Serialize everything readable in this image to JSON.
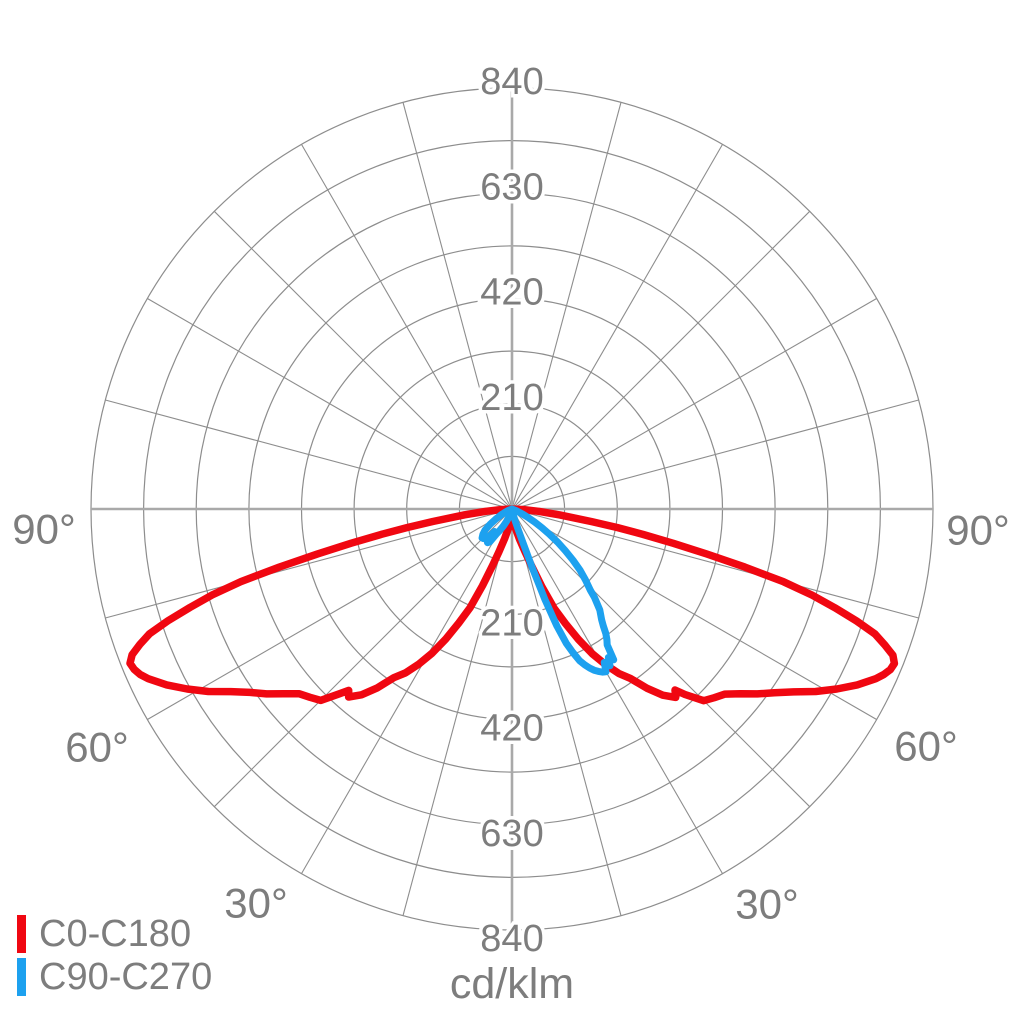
{
  "chart_data": {
    "type": "line",
    "subtype": "polar-photometric-distribution",
    "units_label": "cd/klm",
    "radial_axis": {
      "min": 0,
      "max": 840,
      "circle_step": 105,
      "labeled_ticks": [
        210,
        420,
        630,
        840
      ]
    },
    "angle_grid_step_deg": 15,
    "angle_tick_labels": [
      {
        "text": "90°",
        "deg": 90,
        "side": "left"
      },
      {
        "text": "60°",
        "deg": 60,
        "side": "left"
      },
      {
        "text": "30°",
        "deg": 30,
        "side": "left"
      },
      {
        "text": "30°",
        "deg": 30,
        "side": "right"
      },
      {
        "text": "60°",
        "deg": 60,
        "side": "right"
      },
      {
        "text": "90°",
        "deg": 90,
        "side": "right"
      }
    ],
    "colors": {
      "grid": "#8d8d8d",
      "axis": "#a9a9a9",
      "text": "#7d7d7d",
      "background": "#ffffff",
      "c0": "#f00711",
      "c90": "#1da1ef"
    },
    "legend": {
      "position": "bottom-left",
      "items": [
        {
          "label": "C0-C180",
          "color": "#f00711"
        },
        {
          "label": "C90-C270",
          "color": "#1da1ef"
        }
      ]
    },
    "series": [
      {
        "name": "C0-C180",
        "color": "#f00711",
        "points": [
          [
            -90,
            0
          ],
          [
            -87,
            22
          ],
          [
            -85,
            52
          ],
          [
            -83,
            95
          ],
          [
            -81,
            160
          ],
          [
            -80,
            212
          ],
          [
            -79,
            265
          ],
          [
            -78,
            328
          ],
          [
            -77,
            398
          ],
          [
            -76,
            478
          ],
          [
            -75,
            560
          ],
          [
            -74,
            622
          ],
          [
            -73,
            672
          ],
          [
            -72,
            722
          ],
          [
            -71,
            765
          ],
          [
            -70,
            790
          ],
          [
            -69,
            812
          ],
          [
            -68,
            822
          ],
          [
            -67,
            819
          ],
          [
            -66,
            812
          ],
          [
            -65,
            801
          ],
          [
            -63,
            773
          ],
          [
            -61,
            741
          ],
          [
            -59,
            707
          ],
          [
            -57,
            669
          ],
          [
            -55,
            638
          ],
          [
            -53,
            613
          ],
          [
            -51,
            586
          ],
          [
            -49,
            562
          ],
          [
            -47,
            551
          ],
          [
            -45,
            540
          ],
          [
            -43,
            504
          ],
          [
            -42,
            487
          ],
          [
            -41,
            497
          ],
          [
            -39,
            477
          ],
          [
            -37,
            447
          ],
          [
            -35,
            411
          ],
          [
            -33,
            390
          ],
          [
            -31,
            361
          ],
          [
            -29,
            329
          ],
          [
            -27,
            291
          ],
          [
            -25,
            251
          ],
          [
            -23,
            214
          ],
          [
            -21,
            164
          ],
          [
            -19,
            119
          ],
          [
            -17,
            89
          ],
          [
            -14,
            61
          ],
          [
            -10,
            37
          ],
          [
            -5,
            17
          ],
          [
            0,
            5
          ],
          [
            5,
            18
          ],
          [
            10,
            38
          ],
          [
            14,
            62
          ],
          [
            17,
            90
          ],
          [
            19,
            120
          ],
          [
            21,
            165
          ],
          [
            23,
            215
          ],
          [
            25,
            252
          ],
          [
            27,
            292
          ],
          [
            29,
            330
          ],
          [
            31,
            362
          ],
          [
            33,
            391
          ],
          [
            35,
            413
          ],
          [
            37,
            448
          ],
          [
            39,
            478
          ],
          [
            41,
            498
          ],
          [
            42,
            486
          ],
          [
            43,
            506
          ],
          [
            45,
            541
          ],
          [
            47,
            552
          ],
          [
            49,
            563
          ],
          [
            51,
            586
          ],
          [
            53,
            613
          ],
          [
            55,
            639
          ],
          [
            57,
            670
          ],
          [
            59,
            707
          ],
          [
            61,
            741
          ],
          [
            63,
            773
          ],
          [
            65,
            801
          ],
          [
            66,
            812
          ],
          [
            67,
            820
          ],
          [
            68,
            823
          ],
          [
            69,
            814
          ],
          [
            70,
            791
          ],
          [
            71,
            766
          ],
          [
            72,
            723
          ],
          [
            73,
            673
          ],
          [
            74,
            623
          ],
          [
            75,
            561
          ],
          [
            76,
            479
          ],
          [
            77,
            399
          ],
          [
            78,
            329
          ],
          [
            79,
            266
          ],
          [
            80,
            213
          ],
          [
            81,
            161
          ],
          [
            83,
            96
          ],
          [
            85,
            53
          ],
          [
            87,
            23
          ],
          [
            90,
            0
          ]
        ]
      },
      {
        "name": "C90-C270",
        "color": "#1da1ef",
        "points": [
          [
            -90,
            0
          ],
          [
            -75,
            0
          ],
          [
            -70,
            6
          ],
          [
            -66,
            13
          ],
          [
            -62,
            24
          ],
          [
            -58,
            39
          ],
          [
            -55,
            53
          ],
          [
            -52,
            68
          ],
          [
            -49,
            77
          ],
          [
            -46,
            83
          ],
          [
            -44,
            82
          ],
          [
            -42,
            78
          ],
          [
            -40,
            74
          ],
          [
            -38,
            57
          ],
          [
            -36,
            83
          ],
          [
            -34,
            79
          ],
          [
            -32,
            59
          ],
          [
            -30,
            51
          ],
          [
            -27,
            38
          ],
          [
            -24,
            27
          ],
          [
            -21,
            17
          ],
          [
            -17,
            9
          ],
          [
            -12,
            4
          ],
          [
            -6,
            1
          ],
          [
            0,
            0
          ],
          [
            6,
            2
          ],
          [
            10,
            8
          ],
          [
            13,
            15
          ],
          [
            15,
            26
          ],
          [
            17,
            46
          ],
          [
            18,
            72
          ],
          [
            19,
            122
          ],
          [
            20,
            192
          ],
          [
            21,
            250
          ],
          [
            22,
            289
          ],
          [
            23,
            311
          ],
          [
            24,
            331
          ],
          [
            25,
            343
          ],
          [
            26,
            353
          ],
          [
            27,
            361
          ],
          [
            28,
            367
          ],
          [
            29,
            372
          ],
          [
            30,
            375
          ],
          [
            31,
            357
          ],
          [
            32,
            369
          ],
          [
            33,
            353
          ],
          [
            34,
            363
          ],
          [
            35,
            331
          ],
          [
            36,
            322
          ],
          [
            37,
            311
          ],
          [
            38,
            296
          ],
          [
            39,
            284
          ],
          [
            41,
            267
          ],
          [
            43,
            241
          ],
          [
            44,
            225
          ],
          [
            46,
            204
          ],
          [
            48,
            183
          ],
          [
            50,
            159
          ],
          [
            52,
            135
          ],
          [
            54,
            113
          ],
          [
            56,
            89
          ],
          [
            58,
            70
          ],
          [
            60,
            52
          ],
          [
            62,
            37
          ],
          [
            64,
            25
          ],
          [
            66,
            16
          ],
          [
            69,
            8
          ],
          [
            72,
            3
          ],
          [
            75,
            0
          ],
          [
            90,
            0
          ]
        ]
      }
    ]
  }
}
